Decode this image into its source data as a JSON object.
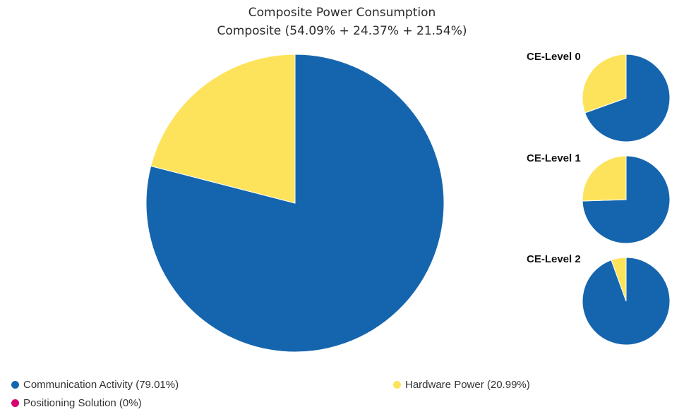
{
  "chart_data": [
    {
      "type": "pie",
      "title": "Composite Power Consumption",
      "subtitle": "Composite (54.09% + 24.37% + 21.54%)",
      "categories": [
        "Communication Activity",
        "Hardware Power",
        "Positioning Solution"
      ],
      "values": [
        79.01,
        20.99,
        0
      ],
      "colors": [
        "#1565ae",
        "#fde35b",
        "#d6006e"
      ]
    },
    {
      "type": "pie",
      "title": "CE-Level 0",
      "categories": [
        "Communication Activity",
        "Hardware Power",
        "Positioning Solution"
      ],
      "values": [
        69.5,
        30.5,
        0
      ],
      "colors": [
        "#1565ae",
        "#fde35b",
        "#d6006e"
      ]
    },
    {
      "type": "pie",
      "title": "CE-Level 1",
      "categories": [
        "Communication Activity",
        "Hardware Power",
        "Positioning Solution"
      ],
      "values": [
        74.5,
        25.5,
        0
      ],
      "colors": [
        "#1565ae",
        "#fde35b",
        "#d6006e"
      ]
    },
    {
      "type": "pie",
      "title": "CE-Level 2",
      "categories": [
        "Communication Activity",
        "Hardware Power",
        "Positioning Solution"
      ],
      "values": [
        94.5,
        5.5,
        0
      ],
      "colors": [
        "#1565ae",
        "#fde35b",
        "#d6006e"
      ]
    }
  ],
  "legend": [
    {
      "label": "Communication Activity (79.01%)",
      "color": "#1565ae"
    },
    {
      "label": "Hardware Power (20.99%)",
      "color": "#fde35b"
    },
    {
      "label": "Positioning Solution (0%)",
      "color": "#d6006e"
    }
  ]
}
